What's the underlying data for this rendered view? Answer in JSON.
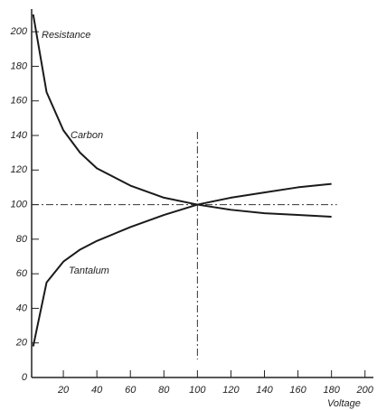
{
  "chart_data": {
    "type": "line",
    "y_label": "Resistance",
    "x_label": "Voltage",
    "x": [
      2,
      10,
      20,
      30,
      40,
      60,
      80,
      100,
      120,
      140,
      160,
      180
    ],
    "series": [
      {
        "name": "Carbon",
        "color": "#1a1a1a",
        "values": [
          210,
          165,
          143,
          130,
          121,
          111,
          104,
          100,
          97,
          95,
          94,
          93
        ]
      },
      {
        "name": "Tantalum",
        "color": "#1a1a1a",
        "values": [
          18,
          55,
          67,
          74,
          79,
          87,
          94,
          100,
          104,
          107,
          110,
          112
        ]
      }
    ],
    "xlim": [
      0,
      205
    ],
    "ylim": [
      0,
      210
    ],
    "xticks": [
      20,
      40,
      60,
      80,
      100,
      120,
      140,
      160,
      180,
      200
    ],
    "yticks": [
      0,
      20,
      40,
      60,
      80,
      100,
      120,
      140,
      160,
      180,
      200
    ],
    "hlines": [
      100
    ],
    "vlines": [
      100
    ]
  }
}
